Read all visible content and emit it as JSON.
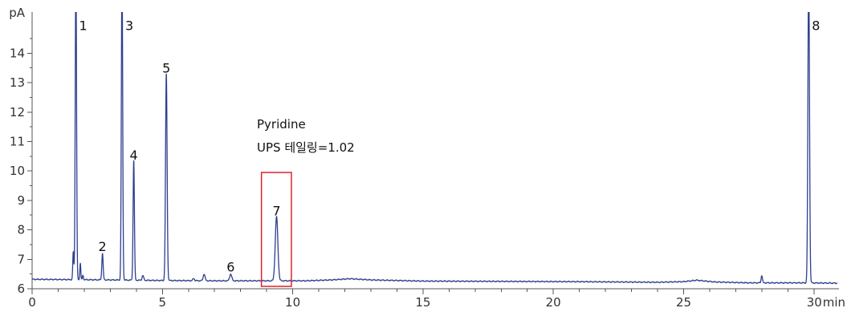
{
  "chart_data": {
    "type": "line",
    "x_unit": "min",
    "y_unit": "pA",
    "xlim": [
      0,
      30.9
    ],
    "ylim": [
      6,
      15.4
    ],
    "x_ticks": [
      0,
      5,
      10,
      15,
      20,
      25,
      30
    ],
    "x_tick_labels": [
      "0",
      "5",
      "10",
      "15",
      "20",
      "25",
      "30"
    ],
    "y_ticks": [
      6,
      7,
      8,
      9,
      10,
      11,
      12,
      13,
      14
    ],
    "y_tick_labels": [
      "6",
      "7",
      "8",
      "9",
      "10",
      "11",
      "12",
      "13",
      "14"
    ],
    "colors": {
      "trace": "#2d3f8f",
      "highlight": "#e0242a",
      "axis": "#555555"
    },
    "baseline": [
      [
        0,
        6.32
      ],
      [
        1.5,
        6.31
      ],
      [
        3,
        6.3
      ],
      [
        5,
        6.28
      ],
      [
        7,
        6.27
      ],
      [
        9,
        6.27
      ],
      [
        10.5,
        6.27
      ],
      [
        11.5,
        6.3
      ],
      [
        12.2,
        6.34
      ],
      [
        13,
        6.3
      ],
      [
        15,
        6.26
      ],
      [
        18,
        6.25
      ],
      [
        21,
        6.24
      ],
      [
        24,
        6.22
      ],
      [
        25,
        6.24
      ],
      [
        25.5,
        6.29
      ],
      [
        26.2,
        6.23
      ],
      [
        27.5,
        6.2
      ],
      [
        29.5,
        6.2
      ],
      [
        30.9,
        6.19
      ]
    ],
    "peaks": [
      {
        "label": "1",
        "rt": 1.68,
        "height": 17.0,
        "width": 0.025
      },
      {
        "label": "",
        "rt": 1.58,
        "height": 7.25,
        "width": 0.02
      },
      {
        "label": "",
        "rt": 1.85,
        "height": 6.88,
        "width": 0.018
      },
      {
        "label": "",
        "rt": 1.95,
        "height": 6.45,
        "width": 0.02
      },
      {
        "label": "2",
        "rt": 2.7,
        "height": 7.2,
        "width": 0.025
      },
      {
        "label": "3",
        "rt": 3.45,
        "height": 17.0,
        "width": 0.025
      },
      {
        "label": "4",
        "rt": 3.9,
        "height": 10.35,
        "width": 0.025
      },
      {
        "label": "",
        "rt": 4.25,
        "height": 6.45,
        "width": 0.03
      },
      {
        "label": "5",
        "rt": 5.15,
        "height": 13.3,
        "width": 0.03
      },
      {
        "label": "",
        "rt": 6.2,
        "height": 6.35,
        "width": 0.03
      },
      {
        "label": "",
        "rt": 6.6,
        "height": 6.5,
        "width": 0.035
      },
      {
        "label": "6",
        "rt": 7.62,
        "height": 6.5,
        "width": 0.04
      },
      {
        "label": "7",
        "rt": 9.38,
        "height": 8.45,
        "width": 0.05
      },
      {
        "label": "",
        "rt": 28.0,
        "height": 6.45,
        "width": 0.025
      },
      {
        "label": "8",
        "rt": 29.8,
        "height": 17.0,
        "width": 0.03
      }
    ],
    "peak_labels": [
      {
        "text": "1",
        "x": 1.68,
        "y": 14.95
      },
      {
        "text": "2",
        "x": 2.7,
        "y": 7.45
      },
      {
        "text": "3",
        "x": 3.45,
        "y": 14.95
      },
      {
        "text": "4",
        "x": 3.9,
        "y": 10.55
      },
      {
        "text": "5",
        "x": 5.15,
        "y": 13.5
      },
      {
        "text": "6",
        "x": 7.62,
        "y": 6.75
      },
      {
        "text": "7",
        "x": 9.38,
        "y": 8.65
      },
      {
        "text": "8",
        "x": 29.8,
        "y": 14.95
      }
    ],
    "annotation": {
      "line1": "Pyridine",
      "line2": "UPS 테일링=1.02",
      "box_x": [
        8.8,
        9.95
      ],
      "box_y": [
        6.08,
        9.95
      ]
    }
  }
}
